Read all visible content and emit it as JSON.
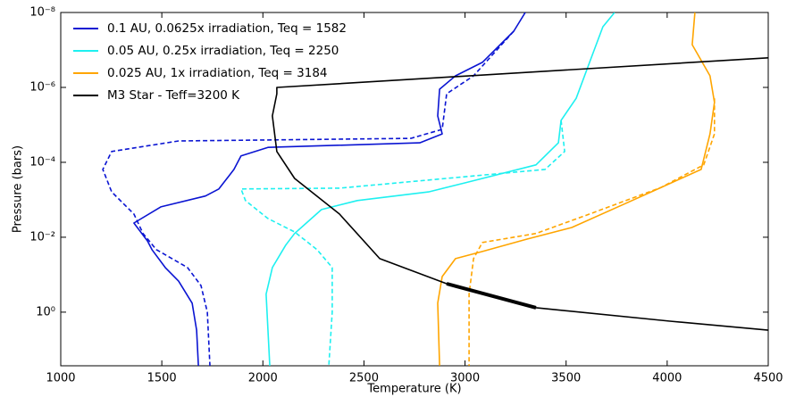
{
  "chart_data": {
    "type": "line",
    "x_label": "Temperature (K)",
    "y_label": "Pressure (bars)",
    "xlim": [
      1000,
      4500
    ],
    "xticks": [
      1000,
      1500,
      2000,
      2500,
      3000,
      3500,
      4000,
      4500
    ],
    "ylim": [
      1e-08,
      27
    ],
    "y_scale": "log",
    "y_inverted": true,
    "yticks": [
      {
        "value": 1e-08,
        "label": "10⁻⁸"
      },
      {
        "value": 1e-06,
        "label": "10⁻⁶"
      },
      {
        "value": 0.0001,
        "label": "10⁻⁴"
      },
      {
        "value": 0.01,
        "label": "10⁻²"
      },
      {
        "value": 1,
        "label": "10⁰"
      }
    ],
    "legend_position": "upper left",
    "series": [
      {
        "name": "0.1 AU, 0.0625x irradiation, Teq = 1582",
        "color": "#0a14d2",
        "linestyle": "solid",
        "x": [
          3298,
          3241,
          3086,
          2953,
          2874,
          2865,
          2887,
          2776,
          2025,
          1892,
          1857,
          1782,
          1716,
          1495,
          1362,
          1429,
          1451,
          1517,
          1583,
          1650,
          1672,
          1681
        ],
        "values": [
          1e-08,
          3.16e-08,
          2.14e-07,
          4.9e-07,
          1.12e-06,
          5.75e-06,
          1.74e-05,
          3.02e-05,
          3.98e-05,
          6.76e-05,
          0.000155,
          0.000513,
          0.000794,
          0.00155,
          0.00417,
          0.0126,
          0.0214,
          0.0646,
          0.148,
          0.575,
          3.02,
          26.9
        ]
      },
      {
        "color": "#0a14d2",
        "linestyle": "dashed",
        "x": [
          3241,
          3042,
          2909,
          2887,
          2732,
          1583,
          1252,
          1208,
          1252,
          1362,
          1407,
          1473,
          1627,
          1694,
          1725,
          1738
        ],
        "values": [
          3.16e-08,
          4.9e-07,
          1.48e-06,
          1.32e-05,
          2.29e-05,
          2.69e-05,
          5.13e-05,
          0.000155,
          0.000617,
          0.0024,
          0.00794,
          0.0214,
          0.0646,
          0.195,
          1,
          26.9
        ]
      },
      {
        "name": "0.05 AU, 0.25x irradiation, Teq = 2250",
        "color": "#1ef0f0",
        "linestyle": "solid",
        "x": [
          3740,
          3682,
          3616,
          3550,
          3475,
          3462,
          3351,
          2997,
          2820,
          2467,
          2290,
          2157,
          2113,
          2047,
          2016,
          2034
        ],
        "values": [
          1e-08,
          2.4e-08,
          2.14e-07,
          1.95e-06,
          7.59e-06,
          3.02e-05,
          0.000117,
          0.000355,
          0.000617,
          0.00105,
          0.00182,
          0.00794,
          0.0162,
          0.0646,
          0.331,
          26.9
        ]
      },
      {
        "color": "#1ef0f0",
        "linestyle": "dashed",
        "x": [
          3475,
          3493,
          3396,
          2379,
          1892,
          1914,
          2025,
          2157,
          2268,
          2343,
          2343,
          2326
        ],
        "values": [
          7.59e-06,
          5.13e-05,
          0.000155,
          0.00049,
          0.000513,
          0.00105,
          0.00316,
          0.00724,
          0.0214,
          0.0646,
          1,
          26.9
        ]
      },
      {
        "name": "0.025 AU, 1x irradiation, Teq = 3184",
        "color": "#ffa500",
        "linestyle": "solid",
        "x": [
          4137,
          4124,
          4212,
          4234,
          4212,
          4168,
          3970,
          3793,
          3528,
          3307,
          3086,
          2953,
          2887,
          2865,
          2874
        ],
        "values": [
          1e-08,
          7.24e-08,
          4.9e-07,
          2.51e-06,
          1.74e-05,
          0.000155,
          0.000468,
          0.00126,
          0.0055,
          0.0112,
          0.024,
          0.0372,
          0.112,
          0.575,
          26.9
        ]
      },
      {
        "color": "#ffa500",
        "linestyle": "dashed",
        "x": [
          4234,
          4234,
          4181,
          3970,
          3616,
          3351,
          3086,
          3042,
          3020,
          3020
        ],
        "values": [
          1.95e-06,
          1.74e-05,
          0.000117,
          0.000468,
          0.0024,
          0.00794,
          0.0138,
          0.0372,
          0.331,
          26.9
        ]
      },
      {
        "name": "M3 Star - Teff=3200 K",
        "color": "#000000",
        "linestyle": "solid",
        "x": [
          4500,
          2069,
          2069,
          2047,
          2069,
          2157,
          2379,
          2578,
          2909,
          3351,
          4014,
          4500
        ],
        "values": [
          1.62e-07,
          1e-06,
          1.48e-06,
          5.75e-06,
          5.13e-05,
          0.000269,
          0.0024,
          0.0372,
          0.174,
          0.759,
          1.74,
          3.02
        ]
      },
      {
        "color": "#000000",
        "linestyle": "solid",
        "linewidth": 4,
        "x": [
          2909,
          3351
        ],
        "values": [
          0.174,
          0.759
        ]
      }
    ]
  }
}
